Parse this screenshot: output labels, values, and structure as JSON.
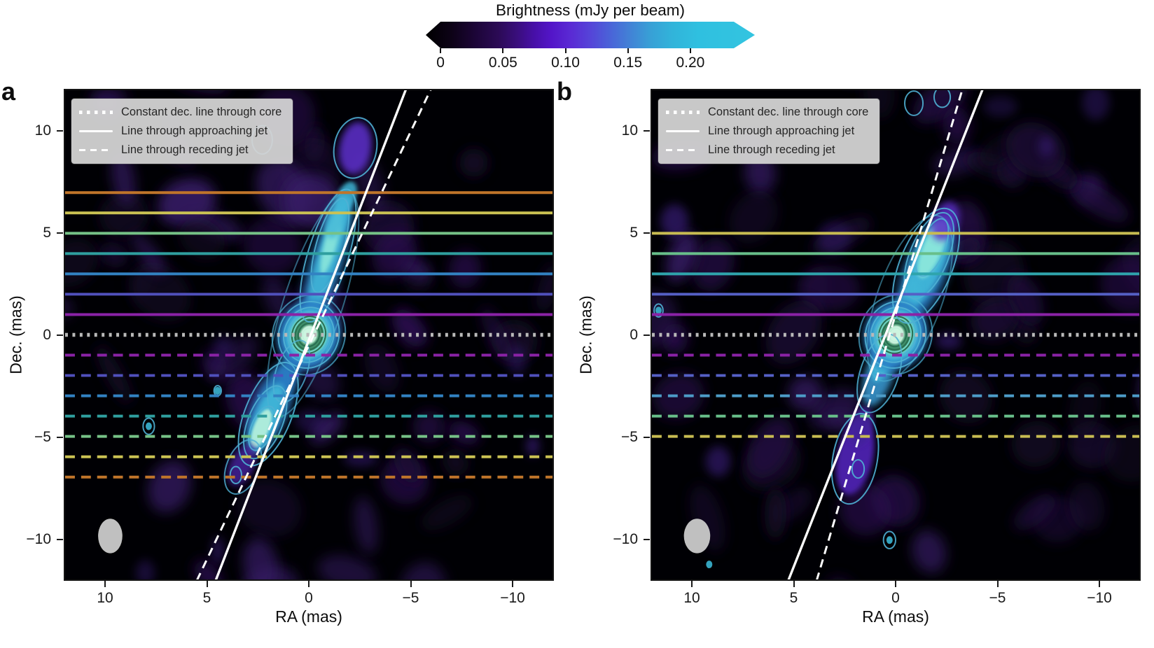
{
  "colorbar": {
    "title": "Brightness (mJy per beam)",
    "tick_values": [
      0,
      0.05,
      0.1,
      0.15,
      0.2
    ],
    "tick_labels": [
      "0",
      "0.05",
      "0.10",
      "0.15",
      "0.20"
    ],
    "vmax": 0.235,
    "colormap_ends": [
      "#000000",
      "#33c4e0"
    ]
  },
  "legend_items": [
    {
      "style": "dotted",
      "label": "Constant dec. line through core"
    },
    {
      "style": "solid",
      "label": "Line through approaching jet"
    },
    {
      "style": "dashed",
      "label": "Line through receding jet"
    }
  ],
  "core_style": {
    "fills": [
      {
        "r": 1.55,
        "color": "#2c7ec6",
        "blur": 5,
        "op": 0.95
      },
      {
        "r": 1.18,
        "color": "#3fb6d8",
        "blur": 3,
        "op": 0.95
      },
      {
        "r": 0.92,
        "color": "#6fd4c4",
        "blur": 2,
        "op": 1
      },
      {
        "r": 0.72,
        "color": "#3f8f68",
        "blur": 0,
        "op": 1
      },
      {
        "r": 0.42,
        "color": "#cdf5e0",
        "blur": 1,
        "op": 1
      }
    ],
    "rings": [
      {
        "r": 0.3,
        "color": "#bff2da",
        "w": 1.5,
        "op": 1
      },
      {
        "r": 0.52,
        "color": "#2a6e52",
        "w": 2,
        "op": 1
      },
      {
        "r": 0.66,
        "color": "#2a6e52",
        "w": 2,
        "op": 1
      },
      {
        "r": 0.82,
        "color": "#2a6e52",
        "w": 2,
        "op": 1
      },
      {
        "r": 1.02,
        "color": "#4fb0d4",
        "w": 2,
        "op": 1
      },
      {
        "r": 1.22,
        "color": "#4fb0d4",
        "w": 2,
        "op": 1
      },
      {
        "r": 1.48,
        "color": "#4fb0d4",
        "w": 2,
        "op": 0.9
      },
      {
        "r": 1.78,
        "color": "#4fb0d4",
        "w": 2,
        "op": 0.7
      }
    ]
  },
  "chart_data": [
    {
      "type": "heatmap",
      "label": "a",
      "xlabel": "RA (mas)",
      "ylabel": "Dec. (mas)",
      "x_range": [
        12,
        -12
      ],
      "y_range": [
        -12,
        12
      ],
      "x_ticks": [
        {
          "v": 10,
          "label": "10"
        },
        {
          "v": 5,
          "label": "5"
        },
        {
          "v": 0,
          "label": "0"
        },
        {
          "v": -5,
          "label": "−5"
        },
        {
          "v": -10,
          "label": "−10"
        }
      ],
      "y_ticks": [
        {
          "v": 10,
          "label": "10"
        },
        {
          "v": 5,
          "label": "5"
        },
        {
          "v": 0,
          "label": "0"
        },
        {
          "v": -5,
          "label": "−5"
        },
        {
          "v": -10,
          "label": "−10"
        }
      ],
      "core": {
        "ra": 0,
        "dec": 0
      },
      "constant_dec_line": {
        "dec": 0,
        "color": "#b8b8b8"
      },
      "slices_approaching": [
        {
          "dec": 1,
          "color": "#8a22a6"
        },
        {
          "dec": 2,
          "color": "#5050bc"
        },
        {
          "dec": 3,
          "color": "#3282c2"
        },
        {
          "dec": 4,
          "color": "#2f9f9f"
        },
        {
          "dec": 5,
          "color": "#76c287"
        },
        {
          "dec": 6,
          "color": "#cbc253"
        },
        {
          "dec": 7,
          "color": "#c0752a"
        }
      ],
      "slices_receding": [
        {
          "dec": -1,
          "color": "#8a22a6"
        },
        {
          "dec": -2,
          "color": "#5050bc"
        },
        {
          "dec": -3,
          "color": "#3282c2"
        },
        {
          "dec": -4,
          "color": "#2f9f9f"
        },
        {
          "dec": -5,
          "color": "#76c287"
        },
        {
          "dec": -6,
          "color": "#cbc253"
        },
        {
          "dec": -7,
          "color": "#c0752a"
        }
      ],
      "jet_lines": {
        "solid": {
          "ra1": 4.6,
          "dec1": -12.1,
          "ra2": -4.8,
          "dec2": 12.1
        },
        "dashed": {
          "ra1": 5.53,
          "dec1": -12.1,
          "ra2": -6.03,
          "dec2": 12.1
        }
      },
      "beam": {
        "ra": 9.8,
        "dec": -9.9,
        "rx": 0.6,
        "ry": 0.85,
        "color": "#c6c6c6"
      },
      "glows": [
        {
          "ra": -0.9,
          "dec": 3.6,
          "rx": 0.8,
          "ry": 3.5,
          "rot": 17,
          "color": "#2c7ec6",
          "blur": 7,
          "op": 0.85
        },
        {
          "ra": -0.95,
          "dec": 3.8,
          "rx": 0.55,
          "ry": 3.0,
          "rot": 17,
          "color": "#3fb6d8",
          "blur": 4,
          "op": 0.9
        },
        {
          "ra": -1.1,
          "dec": 4.6,
          "rx": 0.32,
          "ry": 1.7,
          "rot": 15,
          "color": "#8feadc",
          "blur": 3,
          "op": 0.85
        },
        {
          "ra": -1.4,
          "dec": 5.8,
          "rx": 0.5,
          "ry": 1.1,
          "rot": 20,
          "color": "#3fb6d8",
          "blur": 4,
          "op": 0.8
        },
        {
          "ra": -1.85,
          "dec": 6.8,
          "rx": 0.45,
          "ry": 0.8,
          "rot": 25,
          "color": "#3fb6d8",
          "blur": 3,
          "op": 0.85
        },
        {
          "ra": 0.9,
          "dec": -1.7,
          "rx": 0.5,
          "ry": 1.3,
          "rot": 20,
          "color": "#2c7ec6",
          "blur": 5,
          "op": 0.8
        },
        {
          "ra": 1.9,
          "dec": -3.6,
          "rx": 0.9,
          "ry": 2.4,
          "rot": 22,
          "color": "#2c7ec6",
          "blur": 6,
          "op": 0.9
        },
        {
          "ra": 2.1,
          "dec": -4.1,
          "rx": 0.6,
          "ry": 1.8,
          "rot": 22,
          "color": "#3fb6d8",
          "blur": 4,
          "op": 0.95
        },
        {
          "ra": 2.35,
          "dec": -4.6,
          "rx": 0.38,
          "ry": 1.0,
          "rot": 22,
          "color": "#b9f2dc",
          "blur": 2,
          "op": 0.9
        },
        {
          "ra": -2.3,
          "dec": 9.2,
          "rx": 0.8,
          "ry": 1.3,
          "rot": 10,
          "color": "#5a2ec4",
          "blur": 5,
          "op": 0.9
        },
        {
          "ra": 3.3,
          "dec": -6.4,
          "rx": 0.6,
          "ry": 1.1,
          "rot": 25,
          "color": "#45209a",
          "blur": 5,
          "op": 0.85
        }
      ],
      "contours": [
        {
          "ra": -0.2,
          "dec": 1.5,
          "rx": 1.45,
          "ry": 5.8,
          "rot": 18,
          "op": 0.55
        },
        {
          "ra": -0.95,
          "dec": 3.9,
          "rx": 1.0,
          "ry": 3.4,
          "rot": 17,
          "op": 0.9
        },
        {
          "ra": -1.05,
          "dec": 4.4,
          "rx": 0.68,
          "ry": 2.4,
          "rot": 16,
          "op": 0.9
        },
        {
          "ra": 2.0,
          "dec": -3.9,
          "rx": 1.15,
          "ry": 2.7,
          "rot": 22,
          "op": 0.9
        },
        {
          "ra": 2.15,
          "dec": -4.3,
          "rx": 0.85,
          "ry": 1.9,
          "rot": 22,
          "op": 0.9
        },
        {
          "ra": 2.3,
          "dec": -4.6,
          "rx": 0.55,
          "ry": 1.15,
          "rot": 22,
          "op": 0.9
        },
        {
          "ra": -2.3,
          "dec": 9.2,
          "rx": 1.05,
          "ry": 1.5,
          "rot": 10,
          "op": 0.9
        },
        {
          "ra": 2.3,
          "dec": 9.6,
          "rx": 0.5,
          "ry": 0.7,
          "rot": 0,
          "op": 0.9
        },
        {
          "ra": 3.25,
          "dec": -6.5,
          "rx": 0.8,
          "ry": 1.4,
          "rot": 22,
          "op": 0.8
        },
        {
          "ra": 0.85,
          "dec": -1.8,
          "rx": 0.75,
          "ry": 1.6,
          "rot": 20,
          "op": 0.8
        }
      ],
      "ringlets": [
        {
          "ra": 7.9,
          "dec": -4.5,
          "rx": 0.28,
          "ry": 0.4
        },
        {
          "ra": 3.6,
          "dec": -6.9,
          "rx": 0.28,
          "ry": 0.42
        },
        {
          "ra": 4.5,
          "dec": -2.75,
          "rx": 0.18,
          "ry": 0.25
        }
      ],
      "specks": [
        {
          "ra": 4.5,
          "dec": -2.75
        },
        {
          "ra": 7.9,
          "dec": -4.5
        }
      ]
    },
    {
      "type": "heatmap",
      "label": "b",
      "xlabel": "RA (mas)",
      "ylabel": "Dec. (mas)",
      "x_range": [
        12,
        -12
      ],
      "y_range": [
        -12,
        12
      ],
      "x_ticks": [
        {
          "v": 10,
          "label": "10"
        },
        {
          "v": 5,
          "label": "5"
        },
        {
          "v": 0,
          "label": "0"
        },
        {
          "v": -5,
          "label": "−5"
        },
        {
          "v": -10,
          "label": "−10"
        }
      ],
      "y_ticks": [
        {
          "v": 10,
          "label": "10"
        },
        {
          "v": 5,
          "label": "5"
        },
        {
          "v": 0,
          "label": "0"
        },
        {
          "v": -5,
          "label": "−5"
        },
        {
          "v": -10,
          "label": "−10"
        }
      ],
      "core": {
        "ra": 0,
        "dec": 0
      },
      "constant_dec_line": {
        "dec": 0,
        "color": "#b8b8b8"
      },
      "slices_approaching": [
        {
          "dec": 1,
          "color": "#8a22a6"
        },
        {
          "dec": 2,
          "color": "#5560c6"
        },
        {
          "dec": 3,
          "color": "#2fa4ac"
        },
        {
          "dec": 4,
          "color": "#68bf8a"
        },
        {
          "dec": 5,
          "color": "#c8bc52"
        }
      ],
      "slices_receding": [
        {
          "dec": -1,
          "color": "#8a22a6"
        },
        {
          "dec": -2,
          "color": "#5560c6"
        },
        {
          "dec": -3,
          "color": "#4d9cc8"
        },
        {
          "dec": -4,
          "color": "#68bf8a"
        },
        {
          "dec": -5,
          "color": "#c8bc52"
        }
      ],
      "jet_lines": {
        "solid": {
          "ra1": 5.3,
          "dec1": -12.1,
          "ra2": -4.3,
          "dec2": 12.1
        },
        "dashed": {
          "ra1": 3.9,
          "dec1": -12.1,
          "ra2": -3.3,
          "dec2": 12.1
        }
      },
      "beam": {
        "ra": 9.8,
        "dec": -9.9,
        "rx": 0.65,
        "ry": 0.85,
        "color": "#c6c6c6"
      },
      "glows": [
        {
          "ra": -1.5,
          "dec": 3.2,
          "rx": 1.05,
          "ry": 2.7,
          "rot": 22,
          "color": "#2c7ec6",
          "blur": 7,
          "op": 0.9
        },
        {
          "ra": -1.6,
          "dec": 3.6,
          "rx": 0.8,
          "ry": 2.3,
          "rot": 22,
          "color": "#3fb6d8",
          "blur": 4,
          "op": 0.95
        },
        {
          "ra": -1.8,
          "dec": 4.2,
          "rx": 0.5,
          "ry": 1.5,
          "rot": 22,
          "color": "#8feadc",
          "blur": 3,
          "op": 0.9
        },
        {
          "ra": -2.45,
          "dec": 5.6,
          "rx": 0.65,
          "ry": 1.0,
          "rot": 20,
          "color": "#5a2ec4",
          "blur": 5,
          "op": 0.85
        },
        {
          "ra": -0.55,
          "dec": 1.5,
          "rx": 0.5,
          "ry": 1.4,
          "rot": 20,
          "color": "#3fb6d8",
          "blur": 4,
          "op": 0.85
        },
        {
          "ra": 0.8,
          "dec": -1.9,
          "rx": 0.7,
          "ry": 1.7,
          "rot": 18,
          "color": "#3794cc",
          "blur": 5,
          "op": 0.9
        },
        {
          "ra": 0.7,
          "dec": -1.4,
          "rx": 0.42,
          "ry": 0.95,
          "rot": 18,
          "color": "#3fb6d8",
          "blur": 3,
          "op": 0.9
        },
        {
          "ra": 2.0,
          "dec": -6.0,
          "rx": 0.9,
          "ry": 1.9,
          "rot": 12,
          "color": "#4d24b0",
          "blur": 4,
          "op": 0.95
        },
        {
          "ra": 1.7,
          "dec": -4.5,
          "rx": 0.55,
          "ry": 1.0,
          "rot": 15,
          "color": "#43209a",
          "blur": 4,
          "op": 0.9
        }
      ],
      "contours": [
        {
          "ra": -0.7,
          "dec": 1.8,
          "rx": 1.6,
          "ry": 4.3,
          "rot": 20,
          "op": 0.55
        },
        {
          "ra": -1.5,
          "dec": 3.4,
          "rx": 1.3,
          "ry": 3.0,
          "rot": 22,
          "op": 0.9
        },
        {
          "ra": -1.65,
          "dec": 3.9,
          "rx": 0.95,
          "ry": 2.25,
          "rot": 22,
          "op": 0.9
        },
        {
          "ra": -1.8,
          "dec": 4.3,
          "rx": 0.62,
          "ry": 1.5,
          "rot": 22,
          "op": 0.9
        },
        {
          "ra": 0.8,
          "dec": -1.9,
          "rx": 0.95,
          "ry": 2.0,
          "rot": 18,
          "op": 0.85
        },
        {
          "ra": 2.0,
          "dec": -6.1,
          "rx": 1.1,
          "ry": 2.25,
          "rot": 10,
          "op": 0.9
        }
      ],
      "ringlets": [
        {
          "ra": 1.85,
          "dec": -6.6,
          "rx": 0.3,
          "ry": 0.45
        },
        {
          "ra": 0.3,
          "dec": -10.1,
          "rx": 0.3,
          "ry": 0.42
        },
        {
          "ra": 11.7,
          "dec": 1.2,
          "rx": 0.22,
          "ry": 0.32
        },
        {
          "ra": -2.3,
          "dec": 11.7,
          "rx": 0.4,
          "ry": 0.5
        },
        {
          "ra": -0.9,
          "dec": 11.4,
          "rx": 0.45,
          "ry": 0.6
        }
      ],
      "specks": [
        {
          "ra": 9.2,
          "dec": -11.3
        },
        {
          "ra": 0.3,
          "dec": -10.1
        },
        {
          "ra": 11.7,
          "dec": 1.2
        }
      ]
    }
  ]
}
